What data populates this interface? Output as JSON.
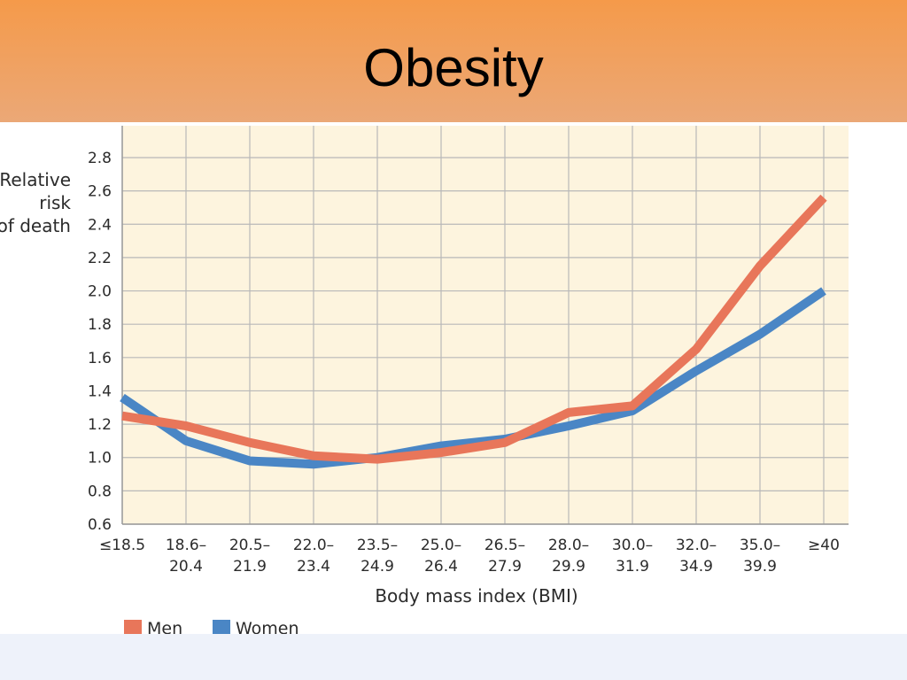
{
  "slide": {
    "title": "Obesity"
  },
  "chart_data": {
    "type": "line",
    "title": "",
    "ylabel_lines": [
      "Relative",
      "risk",
      "of death"
    ],
    "xlabel": "Body mass index (BMI)",
    "ylim": [
      0.6,
      2.8
    ],
    "yticks": [
      "0.6",
      "0.8",
      "1.0",
      "1.2",
      "1.4",
      "1.6",
      "1.8",
      "2.0",
      "2.2",
      "2.4",
      "2.6",
      "2.8"
    ],
    "grid": true,
    "legend_position": "bottom-left",
    "categories": [
      {
        "line1": "≤18.5",
        "line2": ""
      },
      {
        "line1": "18.6–",
        "line2": "20.4"
      },
      {
        "line1": "20.5–",
        "line2": "21.9"
      },
      {
        "line1": "22.0–",
        "line2": "23.4"
      },
      {
        "line1": "23.5–",
        "line2": "24.9"
      },
      {
        "line1": "25.0–",
        "line2": "26.4"
      },
      {
        "line1": "26.5–",
        "line2": "27.9"
      },
      {
        "line1": "28.0–",
        "line2": "29.9"
      },
      {
        "line1": "30.0–",
        "line2": "31.9"
      },
      {
        "line1": "32.0–",
        "line2": "34.9"
      },
      {
        "line1": "35.0–",
        "line2": "39.9"
      },
      {
        "line1": "≥40",
        "line2": ""
      }
    ],
    "series": [
      {
        "name": "Men",
        "color": "#e8765a",
        "values": [
          1.25,
          1.19,
          1.09,
          1.01,
          0.99,
          1.03,
          1.09,
          1.27,
          1.31,
          1.65,
          2.15,
          2.56
        ]
      },
      {
        "name": "Women",
        "color": "#4a86c5",
        "values": [
          1.36,
          1.1,
          0.98,
          0.96,
          1.0,
          1.07,
          1.11,
          1.19,
          1.28,
          1.52,
          1.74,
          2.0
        ]
      }
    ],
    "colors": {
      "plot_background": "#fdf4de",
      "grid": "#b8b8b8"
    }
  }
}
